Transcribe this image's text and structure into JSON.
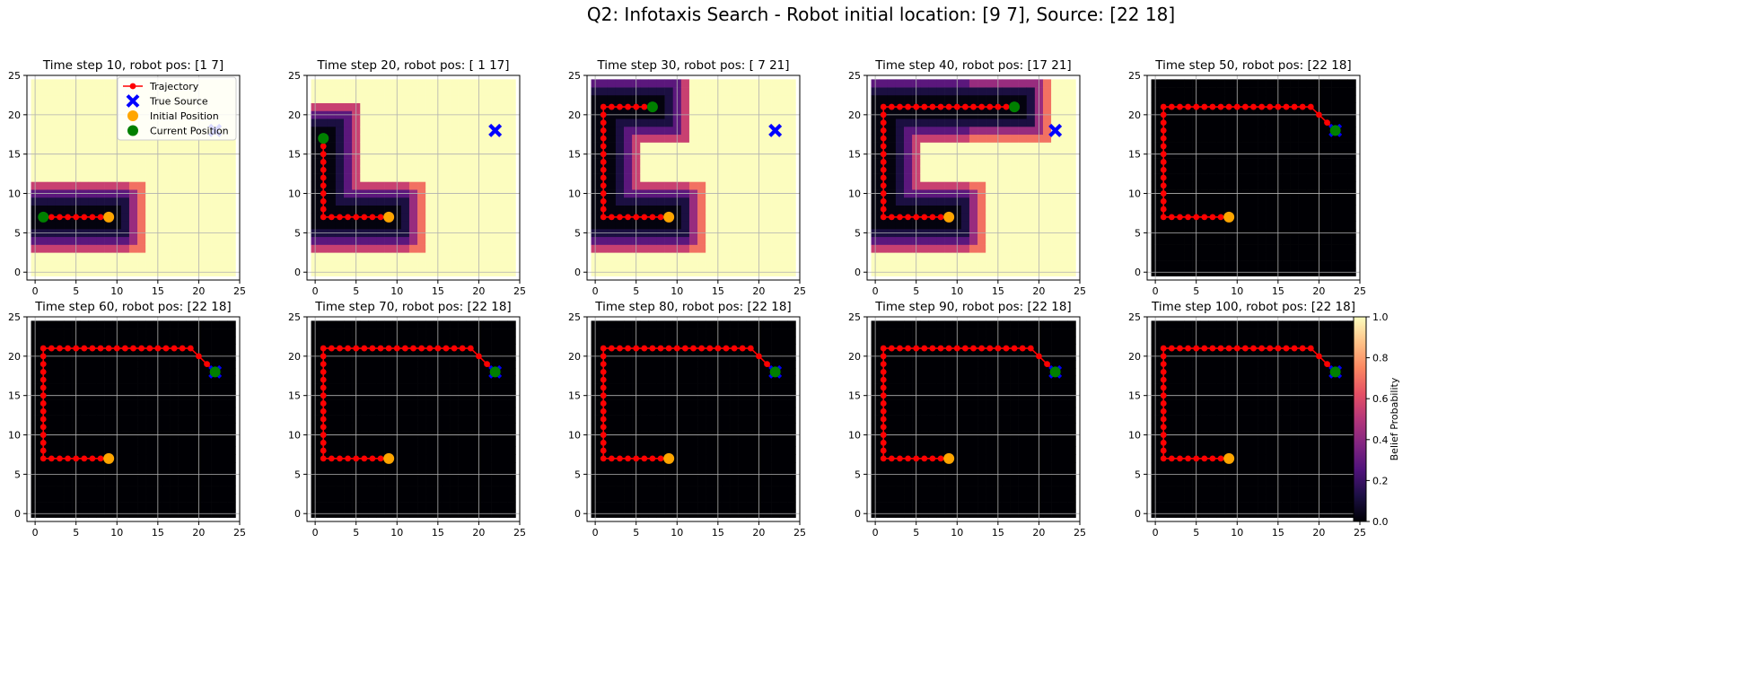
{
  "title": "Q2: Infotaxis Search - Robot initial location: [9 7], Source: [22 18]",
  "colors": {
    "trajectory": "#ff0000",
    "true_source": "#0000ff",
    "initial_position": "#ffa500",
    "current_position": "#008000",
    "unexplored_belief": "#fcfdbf",
    "zero_belief": "#000004",
    "grid": "#b0b0b0"
  },
  "chart_data": {
    "type": "heatmap",
    "colormap": "magma",
    "grid": true,
    "xlim": [
      -1,
      25
    ],
    "ylim": [
      -1,
      25
    ],
    "xticks": [
      0,
      5,
      10,
      15,
      20,
      25
    ],
    "yticks": [
      0,
      5,
      10,
      15,
      20,
      25
    ],
    "initial_position": [
      9,
      7
    ],
    "true_source": [
      22,
      18
    ],
    "legend": {
      "placement": "top-right",
      "panel": 0,
      "entries": [
        {
          "label": "Trajectory",
          "marker": "line-dot",
          "color": "#ff0000"
        },
        {
          "label": "True Source",
          "marker": "x",
          "color": "#0000ff"
        },
        {
          "label": "Initial Position",
          "marker": "dot",
          "color": "#ffa500"
        },
        {
          "label": "Current Position",
          "marker": "dot",
          "color": "#008000"
        }
      ]
    },
    "colorbar": {
      "label": "Belief Probability",
      "ticks": [
        "0.0",
        "0.2",
        "0.4",
        "0.6",
        "0.8",
        "1.0"
      ],
      "range": [
        0,
        1
      ]
    },
    "trajectory_waypoints": [
      [
        9,
        7
      ],
      [
        1,
        7
      ],
      [
        1,
        21
      ],
      [
        19,
        21
      ],
      [
        22,
        18
      ]
    ],
    "panels": [
      {
        "title": "Time step 10, robot pos: [1 7]",
        "step": 10,
        "robot_pos": [
          1,
          7
        ],
        "belief": "partial"
      },
      {
        "title": "Time step 20, robot pos: [ 1 17]",
        "step": 20,
        "robot_pos": [
          1,
          17
        ],
        "belief": "partial"
      },
      {
        "title": "Time step 30, robot pos: [ 7 21]",
        "step": 30,
        "robot_pos": [
          7,
          21
        ],
        "belief": "partial"
      },
      {
        "title": "Time step 40, robot pos: [17 21]",
        "step": 40,
        "robot_pos": [
          17,
          21
        ],
        "belief": "partial"
      },
      {
        "title": "Time step 50, robot pos: [22 18]",
        "step": 50,
        "robot_pos": [
          22,
          18
        ],
        "belief": "converged"
      },
      {
        "title": "Time step 60, robot pos: [22 18]",
        "step": 60,
        "robot_pos": [
          22,
          18
        ],
        "belief": "converged"
      },
      {
        "title": "Time step 70, robot pos: [22 18]",
        "step": 70,
        "robot_pos": [
          22,
          18
        ],
        "belief": "converged"
      },
      {
        "title": "Time step 80, robot pos: [22 18]",
        "step": 80,
        "robot_pos": [
          22,
          18
        ],
        "belief": "converged"
      },
      {
        "title": "Time step 90, robot pos: [22 18]",
        "step": 90,
        "robot_pos": [
          22,
          18
        ],
        "belief": "converged"
      },
      {
        "title": "Time step 100, robot pos: [22 18]",
        "step": 100,
        "robot_pos": [
          22,
          18
        ],
        "belief": "converged"
      }
    ]
  }
}
